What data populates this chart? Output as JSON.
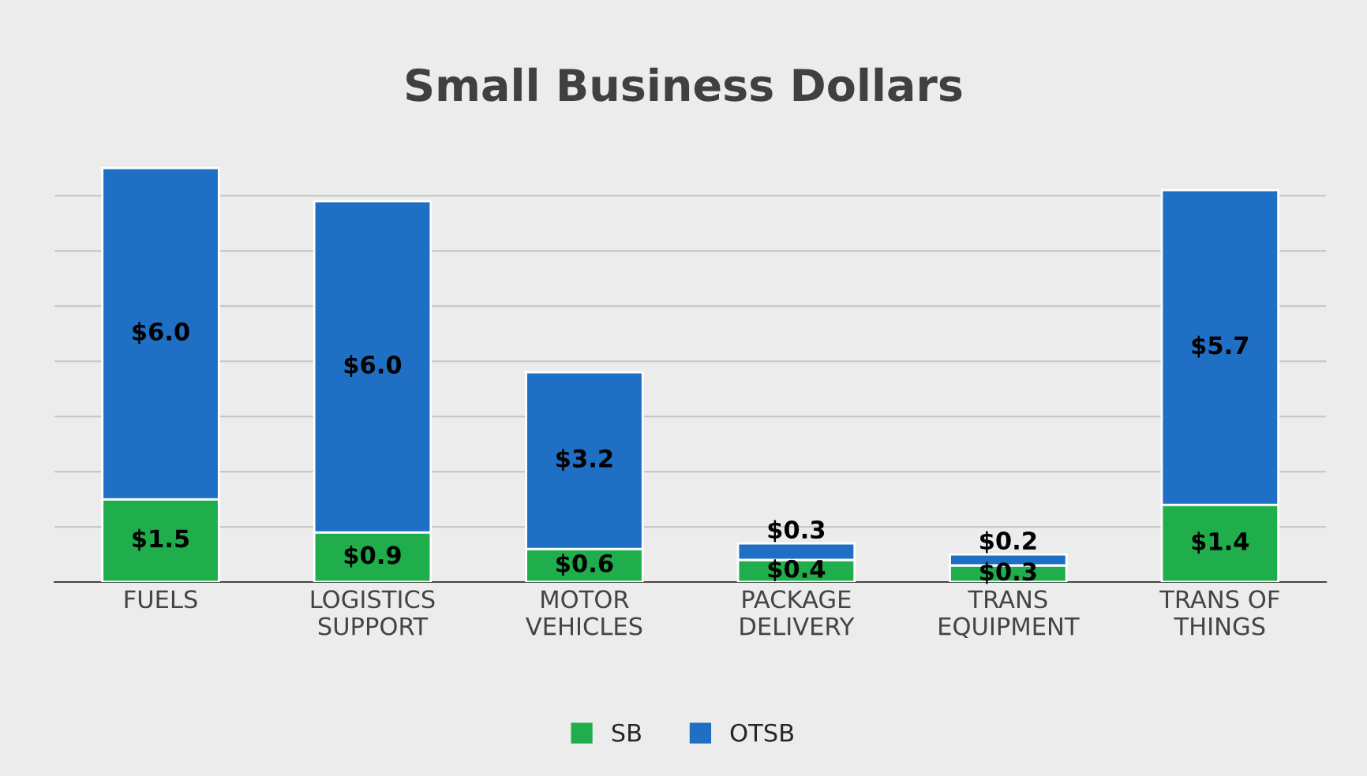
{
  "chart_data": {
    "type": "bar",
    "title": "Small Business Dollars",
    "stacked": true,
    "categories": [
      "FUELS",
      "LOGISTICS\nSUPPORT",
      "MOTOR\nVEHICLES",
      "PACKAGE\nDELIVERY",
      "TRANS\nEQUIPMENT",
      "TRANS OF\nTHINGS"
    ],
    "series": [
      {
        "name": "SB",
        "color": "#1fae4b",
        "values": [
          1.5,
          0.9,
          0.6,
          0.4,
          0.3,
          1.4
        ],
        "value_labels": [
          "$1.5",
          "$0.9",
          "$0.6",
          "$0.4",
          "$0.3",
          "$1.4"
        ]
      },
      {
        "name": "OTSB",
        "color": "#1f6fc4",
        "values": [
          6.0,
          6.0,
          3.2,
          0.3,
          0.2,
          5.7
        ],
        "value_labels": [
          "$6.0",
          "$6.0",
          "$3.2",
          "$0.3",
          "$0.2",
          "$5.7"
        ]
      }
    ],
    "grid": "y",
    "tick_labels": "x",
    "legend": "bottom"
  }
}
